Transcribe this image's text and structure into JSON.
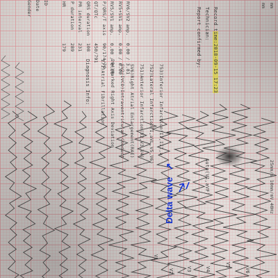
{
  "header": {
    "id_label": "ID",
    "date_label": "Date",
    "gender_label": "Gender",
    "mm_top": "mm",
    "mm_second": "mm"
  },
  "measurements": [
    {
      "label": "HR",
      "value": "179"
    },
    {
      "label": "P duration",
      "value": "289"
    },
    {
      "label": "PR interval",
      "value": "231"
    },
    {
      "label": "QRS duration",
      "value": "108"
    },
    {
      "label": "QT/QTc",
      "value": "450/791"
    },
    {
      "label": "P/QRS/T axis",
      "value": "90/174/79"
    },
    {
      "label": "RV5/SV1 amp.",
      "value": "0.00 / 0.00"
    },
    {
      "label": "RV5+SV1 amp.",
      "value": "0.00 / 0.00"
    },
    {
      "label": "RV6/SV2 amp.",
      "value": "0.00 / 3.81"
    }
  ],
  "diagnosis": {
    "title": "Diagnosis Info:",
    "items": [
      "171)Atrial Fibrillation",
      "204)Marked Right Axis Deviation",
      "SV2(IVCD)Intraventricular Conduct",
      "SV6)Right Atrial Enlargement(RAE)",
      "751)Anterior Infarction(V2,V3,V4)",
      "752)Lateral Infarction(I,aVL,V5,V6)",
      "753)Inferior Infarction(II,III,a"
    ]
  },
  "report": {
    "record_prefix": "Record t",
    "record_date": "ime:2018-09-15 17:23",
    "technician": "Technician:",
    "confirmed": "Report confirmed by:",
    "auto": "Auto(V1,aVF)"
  },
  "leads": [
    "V1",
    "V2",
    "V3",
    "V4",
    "V5",
    "V6"
  ],
  "annotation": {
    "text": "Delta wave",
    "arrow": "↗",
    "color": "#1133dd"
  },
  "footer_hint": "25mm/s 10mm/mV 40Hz"
}
